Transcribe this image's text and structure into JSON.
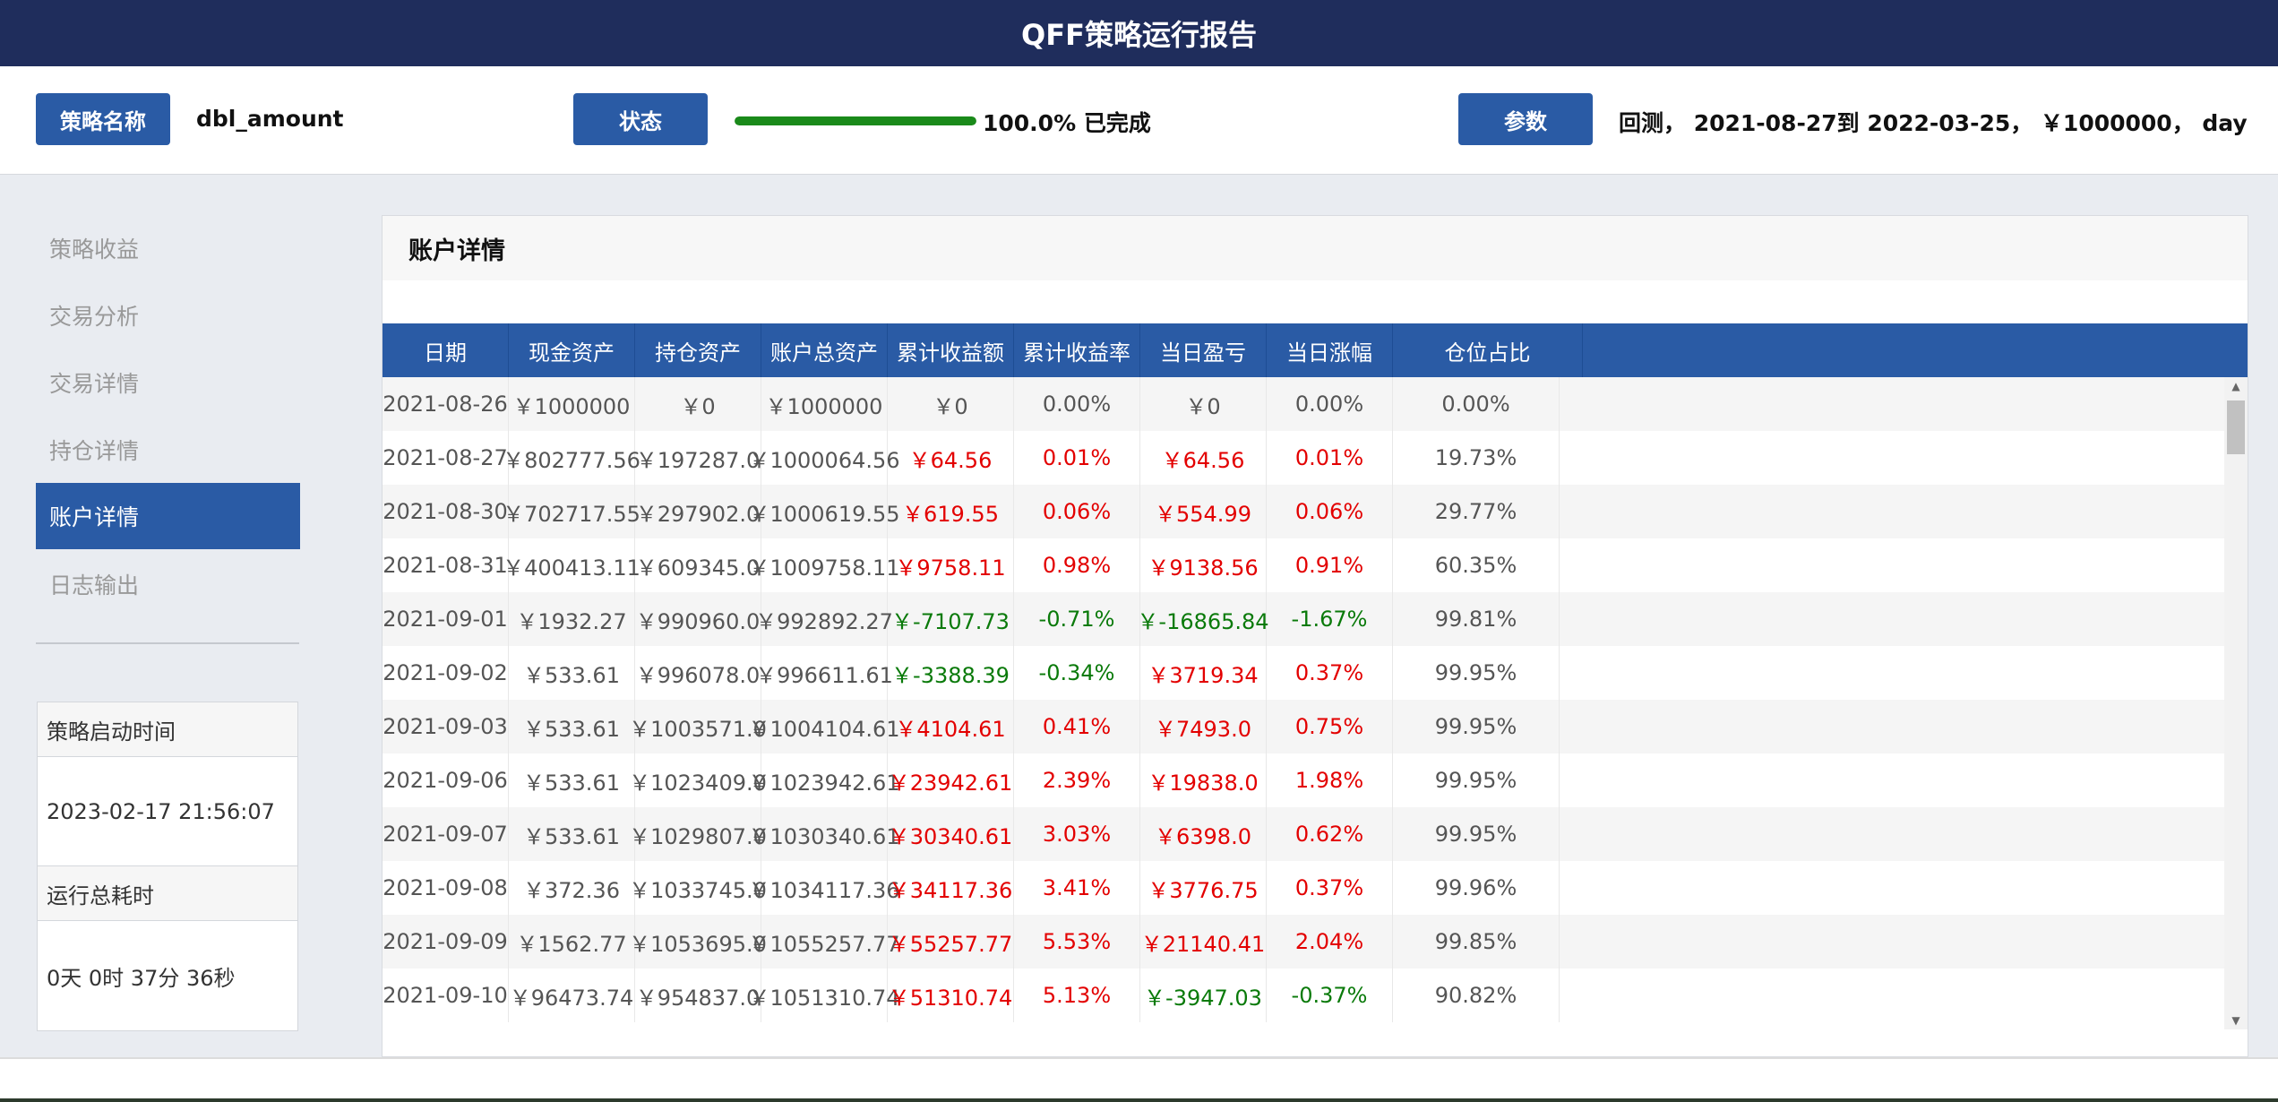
{
  "header": {
    "title": "QFF策略运行报告"
  },
  "infobar": {
    "strategy_label": "策略名称",
    "strategy_name": "dbl_amount",
    "status_label": "状态",
    "progress": 1.0,
    "progress_text": "100.0% 已完成",
    "params_label": "参数",
    "params_text": "回测， 2021-08-27到 2022-03-25， ￥1000000， day"
  },
  "colors": {
    "header_bg": "#1f2d5c",
    "accent": "#2a5ba5",
    "progress": "#1a8a1a",
    "gain": "#e30000",
    "loss": "#0a7a0a"
  },
  "sidebar": {
    "items": [
      {
        "label": "策略收益",
        "active": false
      },
      {
        "label": "交易分析",
        "active": false
      },
      {
        "label": "交易详情",
        "active": false
      },
      {
        "label": "持仓详情",
        "active": false
      },
      {
        "label": "账户详情",
        "active": true
      },
      {
        "label": "日志输出",
        "active": false
      }
    ],
    "start_time_label": "策略启动时间",
    "start_time_value": "2023-02-17 21:56:07",
    "duration_label": "运行总耗时",
    "duration_value": "0天 0时 37分 36秒"
  },
  "panel": {
    "title": "账户详情",
    "columns": [
      "日期",
      "现金资产",
      "持仓资产",
      "账户总资产",
      "累计收益额",
      "累计收益率",
      "当日盈亏",
      "当日涨幅",
      "仓位占比"
    ],
    "rows": [
      [
        "2021-08-26",
        "￥1000000",
        "￥0",
        "￥1000000",
        "￥0",
        "0.00%",
        "￥0",
        "0.00%",
        "0.00%"
      ],
      [
        "2021-08-27",
        "￥802777.56",
        "￥197287.0",
        "￥1000064.56",
        "￥64.56",
        "0.01%",
        "￥64.56",
        "0.01%",
        "19.73%"
      ],
      [
        "2021-08-30",
        "￥702717.55",
        "￥297902.0",
        "￥1000619.55",
        "￥619.55",
        "0.06%",
        "￥554.99",
        "0.06%",
        "29.77%"
      ],
      [
        "2021-08-31",
        "￥400413.11",
        "￥609345.0",
        "￥1009758.11",
        "￥9758.11",
        "0.98%",
        "￥9138.56",
        "0.91%",
        "60.35%"
      ],
      [
        "2021-09-01",
        "￥1932.27",
        "￥990960.0",
        "￥992892.27",
        "￥-7107.73",
        "-0.71%",
        "￥-16865.84",
        "-1.67%",
        "99.81%"
      ],
      [
        "2021-09-02",
        "￥533.61",
        "￥996078.0",
        "￥996611.61",
        "￥-3388.39",
        "-0.34%",
        "￥3719.34",
        "0.37%",
        "99.95%"
      ],
      [
        "2021-09-03",
        "￥533.61",
        "￥1003571.0",
        "￥1004104.61",
        "￥4104.61",
        "0.41%",
        "￥7493.0",
        "0.75%",
        "99.95%"
      ],
      [
        "2021-09-06",
        "￥533.61",
        "￥1023409.0",
        "￥1023942.61",
        "￥23942.61",
        "2.39%",
        "￥19838.0",
        "1.98%",
        "99.95%"
      ],
      [
        "2021-09-07",
        "￥533.61",
        "￥1029807.0",
        "￥1030340.61",
        "￥30340.61",
        "3.03%",
        "￥6398.0",
        "0.62%",
        "99.95%"
      ],
      [
        "2021-09-08",
        "￥372.36",
        "￥1033745.0",
        "￥1034117.36",
        "￥34117.36",
        "3.41%",
        "￥3776.75",
        "0.37%",
        "99.96%"
      ],
      [
        "2021-09-09",
        "￥1562.77",
        "￥1053695.0",
        "￥1055257.77",
        "￥55257.77",
        "5.53%",
        "￥21140.41",
        "2.04%",
        "99.85%"
      ],
      [
        "2021-09-10",
        "￥96473.74",
        "￥954837.0",
        "￥1051310.74",
        "￥51310.74",
        "5.13%",
        "￥-3947.03",
        "-0.37%",
        "90.82%"
      ]
    ]
  }
}
